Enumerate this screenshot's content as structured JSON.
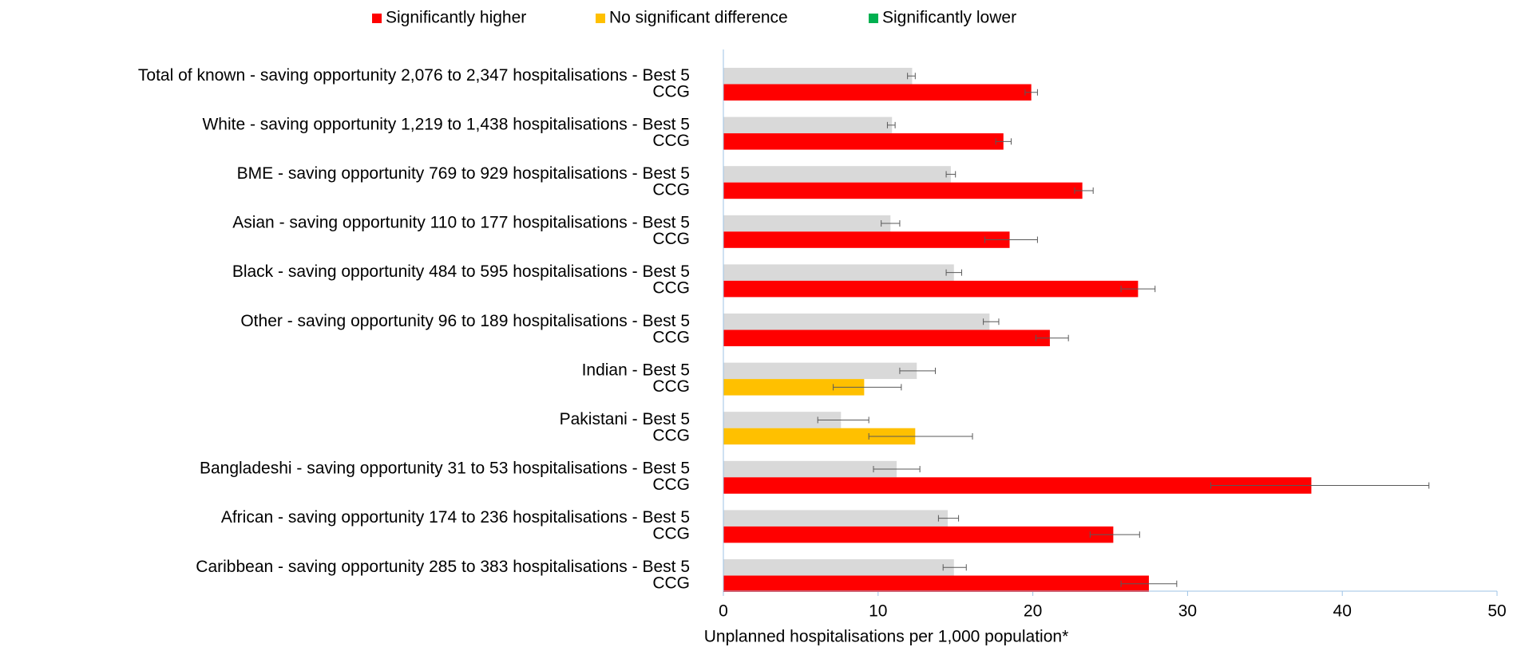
{
  "chart_data": {
    "type": "bar",
    "orientation": "horizontal",
    "xlabel": "Unplanned hospitalisations per 1,000 population*",
    "legend": [
      {
        "name": "Significantly higher",
        "color": "#ff0000"
      },
      {
        "name": "No significant difference",
        "color": "#ffc000"
      },
      {
        "name": "Significantly lower",
        "color": "#00b050"
      }
    ],
    "categories": [
      "Total of known - saving opportunity 2,076 to 2,347 hospitalisations - Best 5",
      "CCG",
      "White - saving opportunity 1,219 to 1,438 hospitalisations - Best 5",
      "CCG",
      "BME - saving opportunity 769 to 929 hospitalisations - Best 5",
      "CCG",
      "Asian - saving opportunity 110 to 177 hospitalisations - Best 5",
      "CCG",
      "Black - saving opportunity 484 to 595 hospitalisations - Best 5",
      "CCG",
      "Other - saving opportunity 96 to 189 hospitalisations - Best 5",
      "CCG",
      "Indian - Best 5",
      "CCG",
      "Pakistani - Best 5",
      "CCG",
      "Bangladeshi - saving opportunity 31 to 53 hospitalisations - Best 5",
      "CCG",
      "African - saving opportunity 174 to 236 hospitalisations - Best 5",
      "CCG",
      "Caribbean - saving opportunity 285 to 383 hospitalisations - Best 5",
      "CCG"
    ],
    "values": [
      12.2,
      19.9,
      10.9,
      18.1,
      14.7,
      23.2,
      10.8,
      18.5,
      14.9,
      26.8,
      17.2,
      21.1,
      12.5,
      9.1,
      7.6,
      12.4,
      11.2,
      38.0,
      14.5,
      25.2,
      14.9,
      27.5
    ],
    "ci_lower": [
      11.9,
      19.5,
      10.6,
      17.6,
      14.4,
      22.7,
      10.2,
      16.9,
      14.4,
      25.7,
      16.8,
      20.2,
      11.4,
      7.1,
      6.1,
      9.4,
      9.7,
      31.5,
      13.9,
      23.7,
      14.2,
      25.7
    ],
    "ci_upper": [
      12.4,
      20.3,
      11.1,
      18.6,
      15.0,
      23.9,
      11.4,
      20.3,
      15.4,
      27.9,
      17.8,
      22.3,
      13.7,
      11.5,
      9.4,
      16.1,
      12.7,
      45.6,
      15.2,
      26.9,
      15.7,
      29.3
    ],
    "colors": [
      "#d9d9d9",
      "#ff0000",
      "#d9d9d9",
      "#ff0000",
      "#d9d9d9",
      "#ff0000",
      "#d9d9d9",
      "#ff0000",
      "#d9d9d9",
      "#ff0000",
      "#d9d9d9",
      "#ff0000",
      "#d9d9d9",
      "#ffc000",
      "#d9d9d9",
      "#ffc000",
      "#d9d9d9",
      "#ff0000",
      "#d9d9d9",
      "#ff0000",
      "#d9d9d9",
      "#ff0000"
    ],
    "xlim": [
      0,
      50
    ],
    "xticks": [
      0,
      10,
      20,
      30,
      40,
      50
    ]
  }
}
